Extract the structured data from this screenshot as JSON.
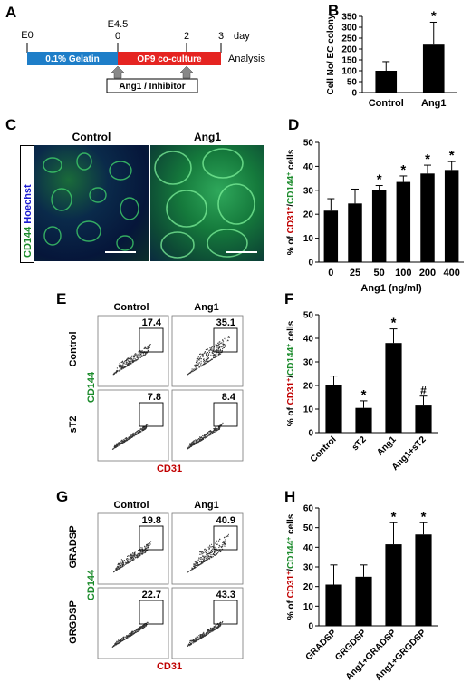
{
  "panels": {
    "A": {
      "letter": "A",
      "e0": "E0",
      "e45": "E4.5",
      "t0": "0",
      "t2": "2",
      "t3": "3",
      "day": "day",
      "gelatin": "0.1% Gelatin",
      "op9": "OP9 co-culture",
      "analysis": "Analysis",
      "treatment": "Ang1 / Inhibitor",
      "colors": {
        "gelatin": "#1e7ec8",
        "op9": "#e52421"
      }
    },
    "B": {
      "letter": "B"
    },
    "C": {
      "letter": "C",
      "control": "Control",
      "ang1": "Ang1",
      "stain_green": "CD144",
      "stain_blue": "Hoechst",
      "colors": {
        "green": "#1a8a2a",
        "blue": "#1a1ad0"
      }
    },
    "D": {
      "letter": "D"
    },
    "E": {
      "letter": "E",
      "col1": "Control",
      "col2": "Ang1",
      "row1": "Control",
      "row2": "sT2",
      "ylabel": "CD144",
      "xlabel": "CD31",
      "q11": "17.4",
      "q12": "35.1",
      "q21": "7.8",
      "q22": "8.4"
    },
    "F": {
      "letter": "F"
    },
    "G": {
      "letter": "G",
      "col1": "Control",
      "col2": "Ang1",
      "row1": "GRADSP",
      "row2": "GRGDSP",
      "ylabel": "CD144",
      "xlabel": "CD31",
      "q11": "19.8",
      "q12": "40.9",
      "q21": "22.7",
      "q22": "43.3"
    },
    "H": {
      "letter": "H"
    }
  },
  "ylabel_cd": {
    "p1": "% of ",
    "cd31": "CD31",
    "plus1": "+",
    "slash": "/",
    "cd144": "CD144",
    "plus2": "+",
    "p2": " cells"
  },
  "chart_data": [
    {
      "panel": "B",
      "type": "bar",
      "categories": [
        "Control",
        "Ang1"
      ],
      "values": [
        100,
        220
      ],
      "errors": [
        42,
        103
      ],
      "significance": [
        "",
        "*"
      ],
      "ylabel": "Cell No/ EC colony",
      "ylim": [
        0,
        350
      ],
      "yticks": [
        0,
        50,
        100,
        150,
        200,
        250,
        300,
        350
      ]
    },
    {
      "panel": "D",
      "type": "bar",
      "categories": [
        "0",
        "25",
        "50",
        "100",
        "200",
        "400"
      ],
      "values": [
        21.5,
        24.5,
        30,
        33.5,
        37,
        38.5
      ],
      "errors": [
        5,
        6,
        2,
        2.5,
        3.5,
        3.5
      ],
      "significance": [
        "",
        "",
        "*",
        "*",
        "*",
        "*"
      ],
      "xlabel": "Ang1 (ng/ml)",
      "ylim": [
        0,
        50
      ],
      "yticks": [
        0,
        10,
        20,
        30,
        40,
        50
      ]
    },
    {
      "panel": "F",
      "type": "bar",
      "categories": [
        "Control",
        "sT2",
        "Ang1",
        "Ang1+sT2"
      ],
      "values": [
        20,
        10.5,
        38,
        11.5
      ],
      "errors": [
        4,
        3,
        6,
        4
      ],
      "significance": [
        "",
        "*",
        "*",
        "#"
      ],
      "ylim": [
        0,
        50
      ],
      "yticks": [
        0,
        10,
        20,
        30,
        40,
        50
      ]
    },
    {
      "panel": "H",
      "type": "bar",
      "categories": [
        "GRADSP",
        "GRGDSP",
        "Ang1+GRADSP",
        "Ang1+GRGDSP"
      ],
      "values": [
        21,
        25,
        41.5,
        46.5
      ],
      "errors": [
        10,
        6,
        11,
        6
      ],
      "significance": [
        "",
        "",
        "*",
        "*"
      ],
      "ylim": [
        0,
        60
      ],
      "yticks": [
        0,
        10,
        20,
        30,
        40,
        50,
        60
      ]
    }
  ]
}
